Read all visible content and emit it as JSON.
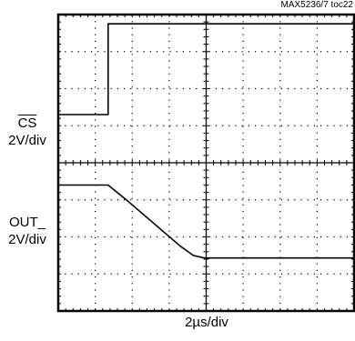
{
  "figure_id": "MAX5236/7 toc22",
  "chart_data": {
    "type": "line",
    "xlabel": "2µs/div",
    "grid": true,
    "x_divisions": 8,
    "y_divisions": 8,
    "series": [
      {
        "channel_label": "CS",
        "scale": "2V/div",
        "points": [
          [
            0,
            1.3
          ],
          [
            1.35,
            1.3
          ],
          [
            1.35,
            3.75
          ],
          [
            8,
            3.75
          ]
        ]
      },
      {
        "channel_label": "OUT_",
        "scale": "2V/div",
        "points": [
          [
            0,
            3.4
          ],
          [
            1.35,
            3.4
          ],
          [
            1.9,
            2.95
          ],
          [
            2.6,
            2.35
          ],
          [
            3.3,
            1.75
          ],
          [
            3.65,
            1.5
          ],
          [
            3.95,
            1.43
          ],
          [
            8,
            1.43
          ]
        ]
      }
    ]
  }
}
